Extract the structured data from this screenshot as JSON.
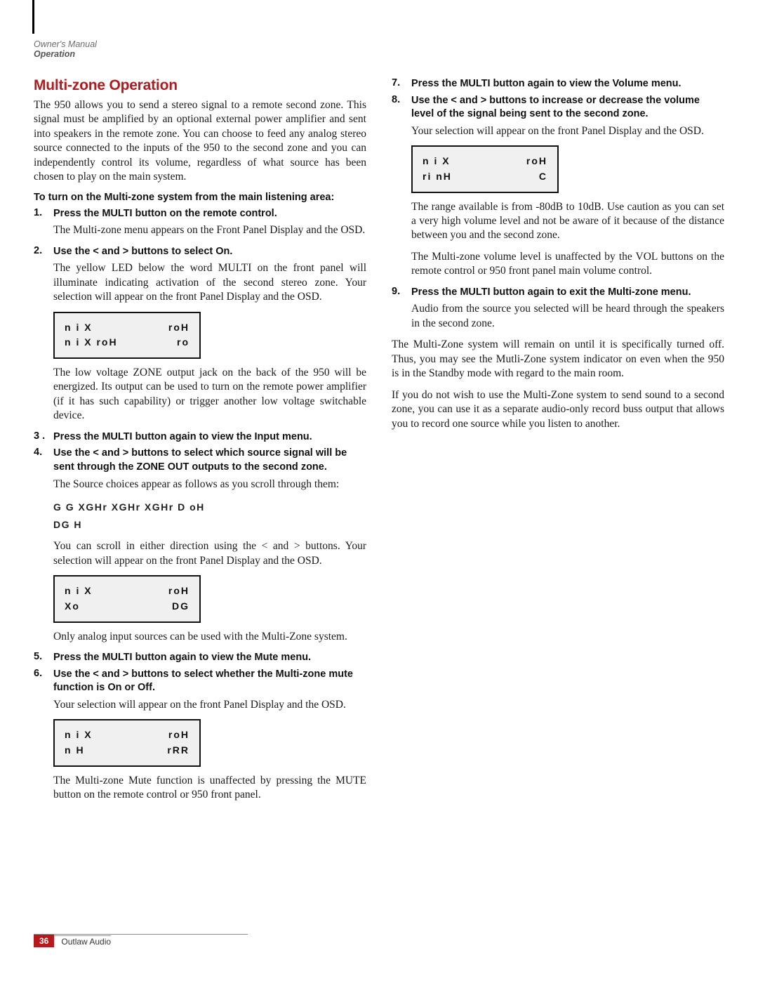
{
  "meta": {
    "header_line1": "Owner's Manual",
    "header_line2": "Operation",
    "page_number": "36",
    "brand": "Outlaw Audio"
  },
  "colors": {
    "accent": "#b5191e",
    "text": "#1a1a1a",
    "osd_bg": "#f0f0f0",
    "osd_border": "#111111"
  },
  "left": {
    "title": "Multi-zone Operation",
    "intro": "The 950 allows you to send a stereo signal to a remote second zone. This signal must be amplified by an optional external power amplifier and sent into speakers in the remote zone. You can choose to feed any analog stereo source connected to the inputs of the 950 to the second zone and you can independently control its volume, regardless of what source has been chosen to play on the main system.",
    "subhead": "To turn on the Multi-zone system from the main listening area:",
    "step1_num": "1.",
    "step1": "Press the MULTI button on the remote control.",
    "step1_body": "The Multi-zone menu appears on the Front Panel Display and the OSD.",
    "step2_num": "2.",
    "step2": "Use the < and > buttons to select On.",
    "step2_body": "The yellow LED below the word MULTI on the front panel will illuminate indicating activation of the second stereo zone. Your selection will appear on the front Panel Display and the OSD.",
    "osd1_l1a": "n  i  X",
    "osd1_l1b": "roH",
    "osd1_l2a": "n  i  X    roH",
    "osd1_l2b": "ro",
    "step2_body2": "The low voltage ZONE output jack on the back of the 950 will be energized. Its output can be used to turn on the remote power amplifier (if it has such capability) or trigger another low voltage switchable device.",
    "step3_num": "3 .",
    "step3": "Press the MULTI button again to view the Input menu.",
    "step4_num": "4.",
    "step4": "Use the < and > buttons to select which source signal will be sent through the ZONE OUT outputs to the second zone.",
    "step4_body": "The Source choices appear as follows as you scroll through them:",
    "sources_l1": "G   G   XGHr     XGHr     XGHr     D       oH",
    "sources_l2": "DG       H",
    "step4_body2": "You can scroll in either direction using the < and > buttons. Your selection will appear on the front Panel Display and the OSD.",
    "osd2_l1a": "n  i  X",
    "osd2_l1b": "roH",
    "osd2_l2a": "Xo",
    "osd2_l2b": "DG",
    "step4_body3": "Only analog input sources can be used with the Multi-Zone system.",
    "step5_num": "5.",
    "step5": "Press the MULTI button again to view the Mute menu.",
    "step6_num": "6.",
    "step6": "Use the < and > buttons to select whether the Multi-zone mute function is On or Off.",
    "step6_body": "Your selection will appear on the front Panel Display and the OSD.",
    "osd3_l1a": "n  i  X",
    "osd3_l1b": "roH",
    "osd3_l2a": "n     H",
    "osd3_l2b": "rRR",
    "step6_body2": "The Multi-zone Mute function is unaffected by pressing the MUTE button on the remote control or 950 front panel."
  },
  "right": {
    "step7_num": "7.",
    "step7": "Press the MULTI button again to view the Volume menu.",
    "step8_num": "8.",
    "step8": "Use the < and > buttons to increase or decrease the volume level of the signal being sent to the second zone.",
    "step8_body": "Your selection will appear on the front Panel Display and the OSD.",
    "osd4_l1a": "n  i  X",
    "osd4_l1b": "roH",
    "osd4_l2a": "ri   nH",
    "osd4_l2b": "C",
    "step8_body2": "The range available is from -80dB to 10dB. Use caution as you can set a very high volume level and not be aware of it because of the distance between you and the second zone.",
    "step8_body3": "The Multi-zone volume level is unaffected by the VOL buttons on the remote control or 950 front panel main volume control.",
    "step9_num": "9.",
    "step9": "Press the MULTI button again to exit the Multi-zone menu.",
    "step9_body": "Audio from the source you selected will be heard through the speakers in the second zone.",
    "closing1": "The Multi-Zone system will remain on until it is specifically turned off. Thus, you may see the Mutli-Zone system indicator on even when the 950 is in the Standby mode with regard to the main room.",
    "closing2": "If you do not wish to use the Multi-Zone system to send sound to a second zone, you can use it as a separate audio-only record buss output that allows you to record one source while you listen to another."
  }
}
